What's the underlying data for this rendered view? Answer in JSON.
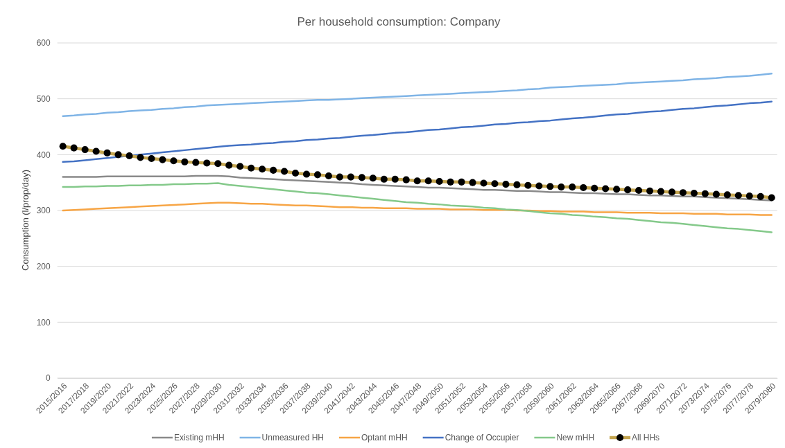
{
  "chart_data": {
    "type": "line",
    "title": "Per household consumption: Company",
    "ylabel": "Consumption (l/prop/day)",
    "categories": [
      "2015/2016",
      null,
      "2017/2018",
      null,
      "2019/2020",
      null,
      "2021/2022",
      null,
      "2023/2024",
      null,
      "2025/2026",
      null,
      "2027/2028",
      null,
      "2029/2030",
      null,
      "2031/2032",
      null,
      "2033/2034",
      null,
      "2035/2036",
      null,
      "2037/2038",
      null,
      "2039/2040",
      null,
      "2041/2042",
      null,
      "2043/2044",
      null,
      "2045/2046",
      null,
      "2047/2048",
      null,
      "2049/2050",
      null,
      "2051/2052",
      null,
      "2053/2054",
      null,
      "2055/2056",
      null,
      "2057/2058",
      null,
      "2059/2060",
      null,
      "2061/2062",
      null,
      "2063/2064",
      null,
      "2065/2066",
      null,
      "2067/2068",
      null,
      "2069/2070",
      null,
      "2071/2072",
      null,
      "2073/2074",
      null,
      "2075/2076",
      null,
      "2077/2078",
      null,
      "2079/2080"
    ],
    "series": [
      {
        "name": "Existing mHH",
        "color": "#8a8a8a",
        "values": [
          360,
          360,
          360,
          360,
          361,
          361,
          361,
          361,
          361,
          361,
          361,
          361,
          362,
          362,
          362,
          361,
          359,
          358,
          357,
          356,
          355,
          354,
          353,
          352,
          351,
          350,
          349,
          347,
          346,
          345,
          344,
          343,
          342,
          341,
          341,
          340,
          339,
          338,
          337,
          337,
          336,
          335,
          335,
          334,
          333,
          333,
          332,
          331,
          331,
          330,
          329,
          329,
          328,
          327,
          327,
          326,
          325,
          325,
          324,
          323,
          322,
          321,
          320,
          319,
          318
        ]
      },
      {
        "name": "Unmeasured HH",
        "color": "#7fb4e6",
        "values": [
          469,
          470,
          472,
          473,
          475,
          476,
          478,
          479,
          480,
          482,
          483,
          485,
          486,
          488,
          489,
          490,
          491,
          492,
          493,
          494,
          495,
          496,
          497,
          498,
          498,
          499,
          500,
          501,
          502,
          503,
          504,
          505,
          506,
          507,
          508,
          509,
          510,
          511,
          512,
          513,
          514,
          515,
          517,
          518,
          520,
          521,
          522,
          523,
          524,
          525,
          526,
          528,
          529,
          530,
          531,
          532,
          533,
          535,
          536,
          537,
          539,
          540,
          541,
          543,
          545
        ]
      },
      {
        "name": "Optant mHH",
        "color": "#f7a545",
        "values": [
          300,
          301,
          302,
          303,
          304,
          305,
          306,
          307,
          308,
          309,
          310,
          311,
          312,
          313,
          314,
          314,
          313,
          312,
          312,
          311,
          310,
          309,
          309,
          308,
          307,
          306,
          306,
          305,
          305,
          304,
          304,
          304,
          303,
          303,
          303,
          302,
          302,
          302,
          301,
          301,
          301,
          300,
          300,
          299,
          299,
          298,
          298,
          298,
          297,
          297,
          297,
          296,
          296,
          296,
          295,
          295,
          295,
          294,
          294,
          294,
          293,
          293,
          293,
          292,
          292
        ]
      },
      {
        "name": "Change of Occupier",
        "color": "#4472c4",
        "values": [
          387,
          388,
          390,
          392,
          394,
          396,
          398,
          400,
          402,
          404,
          406,
          408,
          410,
          412,
          414,
          416,
          417,
          418,
          420,
          421,
          423,
          424,
          426,
          427,
          429,
          430,
          432,
          434,
          435,
          437,
          439,
          440,
          442,
          444,
          445,
          447,
          449,
          450,
          452,
          454,
          455,
          457,
          458,
          460,
          461,
          463,
          465,
          466,
          468,
          470,
          472,
          473,
          475,
          477,
          478,
          480,
          482,
          483,
          485,
          487,
          488,
          490,
          492,
          493,
          495
        ]
      },
      {
        "name": "New mHH",
        "color": "#84c98a",
        "values": [
          342,
          342,
          343,
          343,
          344,
          344,
          345,
          345,
          346,
          346,
          347,
          347,
          348,
          348,
          349,
          346,
          344,
          342,
          340,
          338,
          336,
          334,
          332,
          331,
          329,
          327,
          325,
          323,
          321,
          319,
          317,
          315,
          314,
          312,
          311,
          309,
          308,
          307,
          305,
          304,
          302,
          301,
          299,
          297,
          295,
          294,
          292,
          291,
          289,
          288,
          286,
          285,
          283,
          281,
          279,
          278,
          276,
          274,
          272,
          270,
          268,
          267,
          265,
          263,
          261
        ]
      },
      {
        "name": "All HHs",
        "color": "#c4a54f",
        "marker": "circle",
        "values": [
          415,
          412,
          409,
          406,
          403,
          400,
          398,
          395,
          393,
          391,
          389,
          387,
          386,
          385,
          384,
          381,
          379,
          376,
          374,
          372,
          370,
          367,
          365,
          364,
          362,
          360,
          360,
          359,
          358,
          356,
          356,
          355,
          353,
          353,
          352,
          351,
          351,
          350,
          349,
          348,
          347,
          346,
          345,
          344,
          343,
          342,
          342,
          341,
          340,
          339,
          338,
          337,
          336,
          335,
          334,
          333,
          332,
          331,
          330,
          329,
          328,
          327,
          326,
          325,
          323
        ]
      }
    ],
    "ylim": [
      0,
      600
    ],
    "yticks": [
      0,
      100,
      200,
      300,
      400,
      500,
      600
    ],
    "grid": "y",
    "legend": "bottom"
  }
}
